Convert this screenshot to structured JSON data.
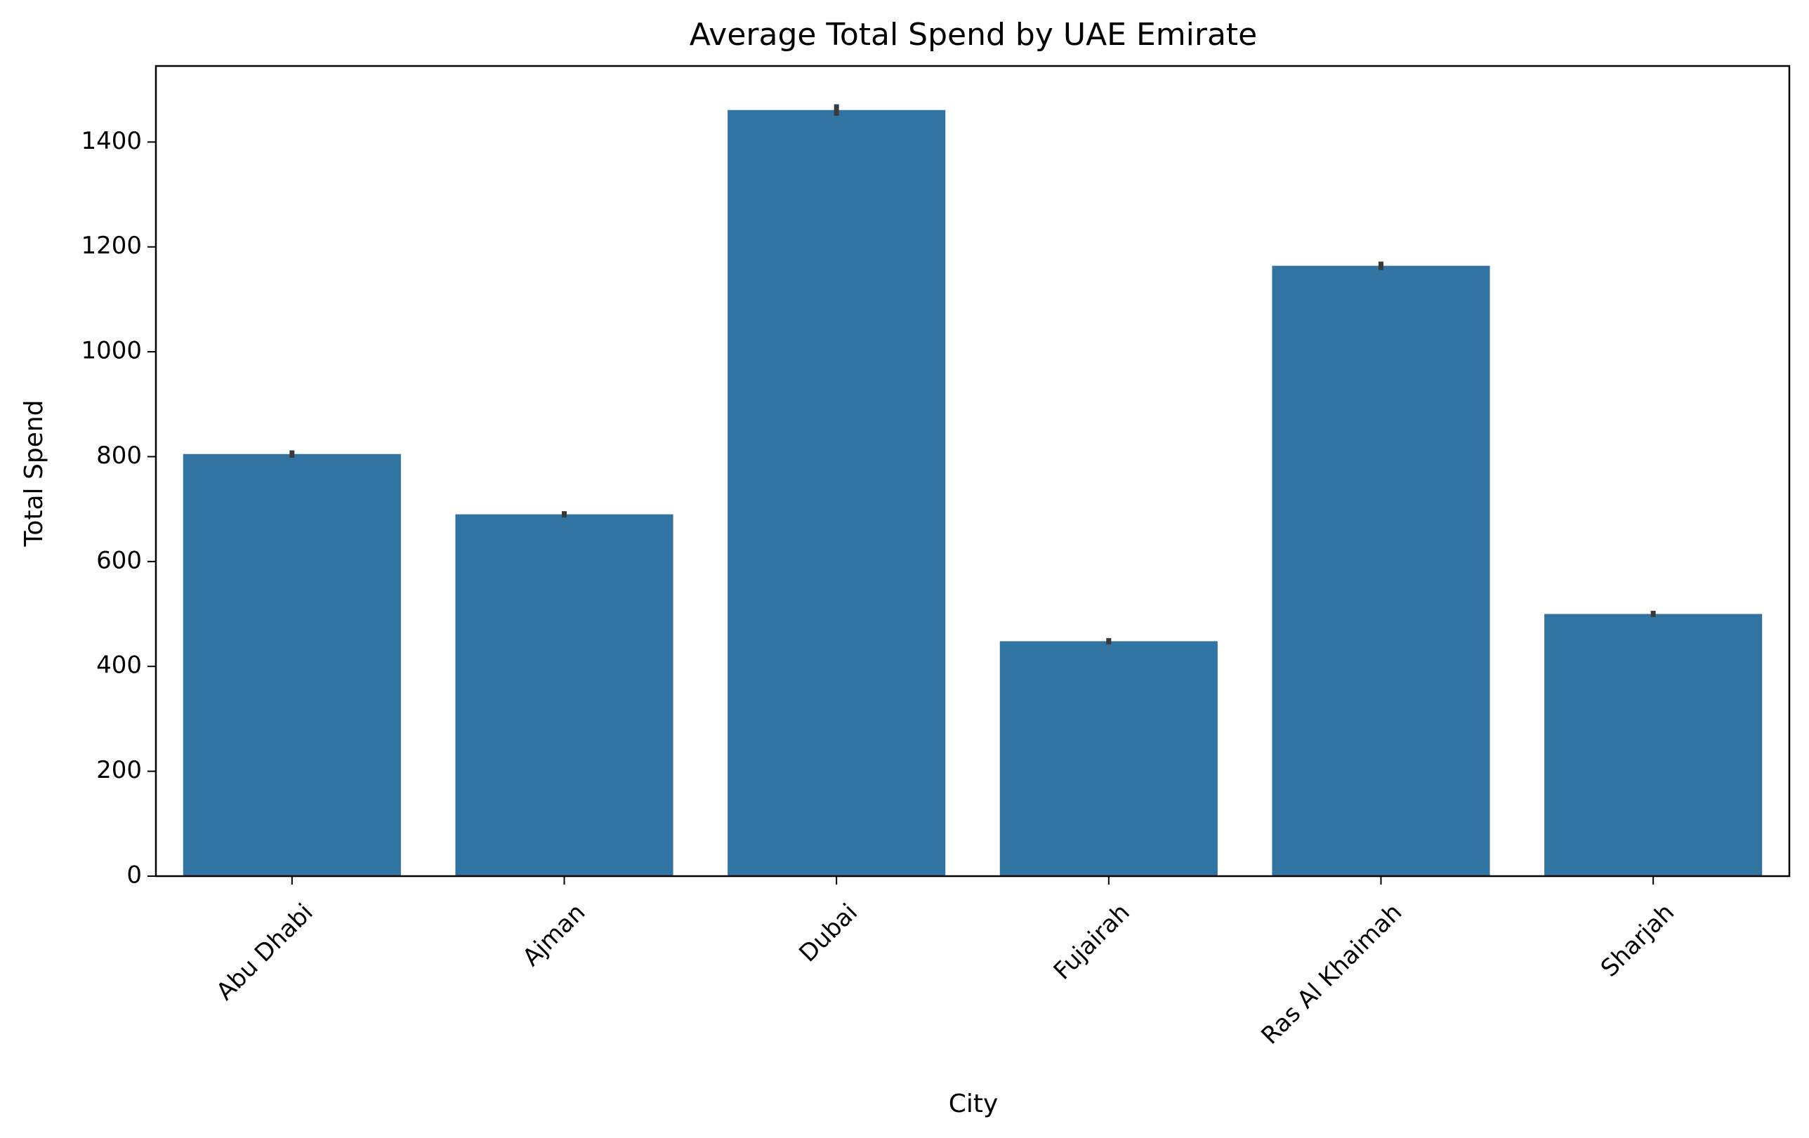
{
  "chart_data": {
    "type": "bar",
    "title": "Average Total Spend by UAE Emirate",
    "xlabel": "City",
    "ylabel": "Total Spend",
    "categories": [
      "Abu Dhabi",
      "Ajman",
      "Dubai",
      "Fujairah",
      "Ras Al Khaimah",
      "Sharjah"
    ],
    "values": [
      805,
      690,
      1461,
      448,
      1164,
      500
    ],
    "error_bars": [
      {
        "low": 798,
        "high": 812
      },
      {
        "low": 684,
        "high": 696
      },
      {
        "low": 1450,
        "high": 1472
      },
      {
        "low": 442,
        "high": 454
      },
      {
        "low": 1156,
        "high": 1172
      },
      {
        "low": 494,
        "high": 506
      }
    ],
    "ylim": [
      0,
      1545
    ],
    "yticks": [
      "0",
      "200",
      "400",
      "600",
      "800",
      "1000",
      "1200",
      "1400"
    ],
    "bar_color": "#3274a1",
    "errorbar_color": "#3a3a3a",
    "grid": false,
    "legend": "none"
  }
}
